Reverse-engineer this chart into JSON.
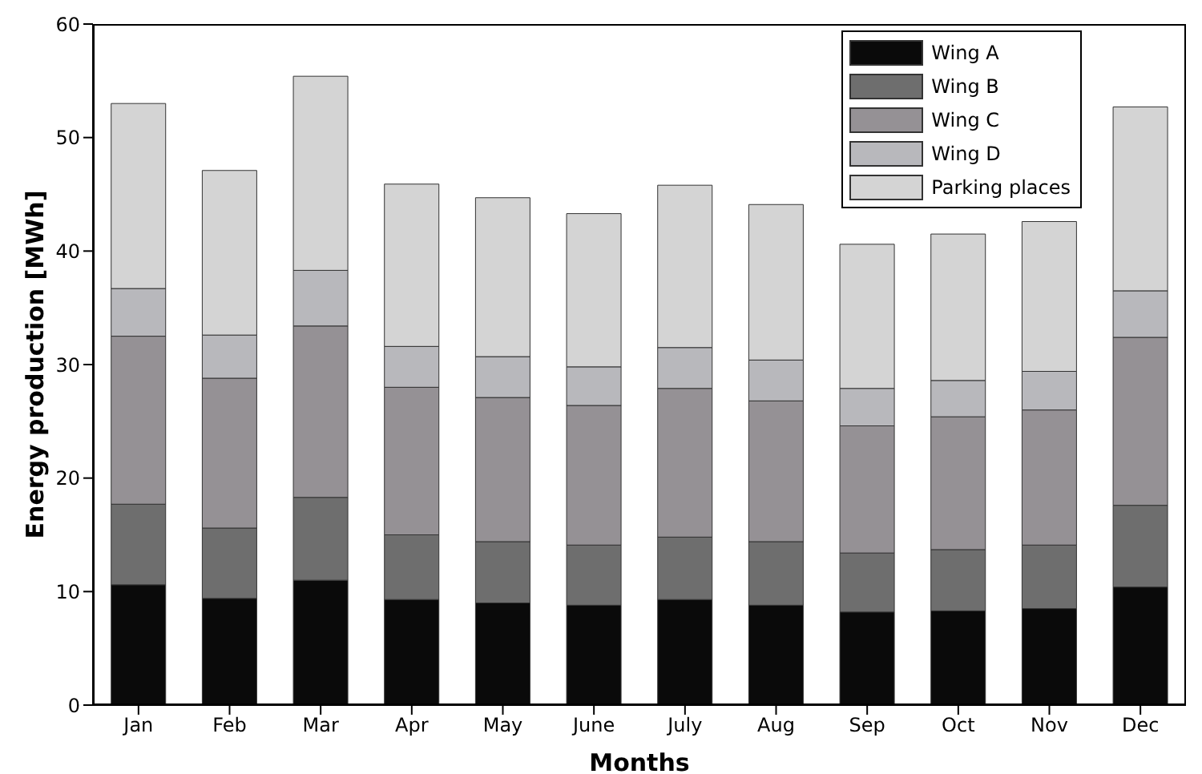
{
  "chart_data": {
    "type": "bar",
    "stacked": true,
    "xlabel": "Months",
    "ylabel": "Energy production [MWh]",
    "categories": [
      "Jan",
      "Feb",
      "Mar",
      "Apr",
      "May",
      "June",
      "July",
      "Aug",
      "Sep",
      "Oct",
      "Nov",
      "Dec"
    ],
    "series": [
      {
        "name": "Wing A",
        "color": "#0a0a0a",
        "values": [
          10.6,
          9.4,
          11.0,
          9.3,
          9.0,
          8.8,
          9.3,
          8.8,
          8.2,
          8.3,
          8.5,
          10.4
        ]
      },
      {
        "name": "Wing B",
        "color": "#6e6e6e",
        "values": [
          7.1,
          6.2,
          7.3,
          5.7,
          5.4,
          5.3,
          5.5,
          5.6,
          5.2,
          5.4,
          5.6,
          7.2
        ]
      },
      {
        "name": "Wing C",
        "color": "#959195",
        "values": [
          14.8,
          13.2,
          15.1,
          13.0,
          12.7,
          12.3,
          13.1,
          12.4,
          11.2,
          11.7,
          11.9,
          14.8
        ]
      },
      {
        "name": "Wing D",
        "color": "#b8b8bc",
        "values": [
          4.2,
          3.8,
          4.9,
          3.6,
          3.6,
          3.4,
          3.6,
          3.6,
          3.3,
          3.2,
          3.4,
          4.1
        ]
      },
      {
        "name": "Parking places",
        "color": "#d4d4d4",
        "values": [
          16.3,
          14.5,
          17.1,
          14.3,
          14.0,
          13.5,
          14.3,
          13.7,
          12.7,
          12.9,
          13.2,
          16.2
        ]
      }
    ],
    "ylim": [
      0,
      60
    ],
    "yticks": [
      0,
      10,
      20,
      30,
      40,
      50,
      60
    ],
    "grid": false,
    "legend": "top right"
  }
}
